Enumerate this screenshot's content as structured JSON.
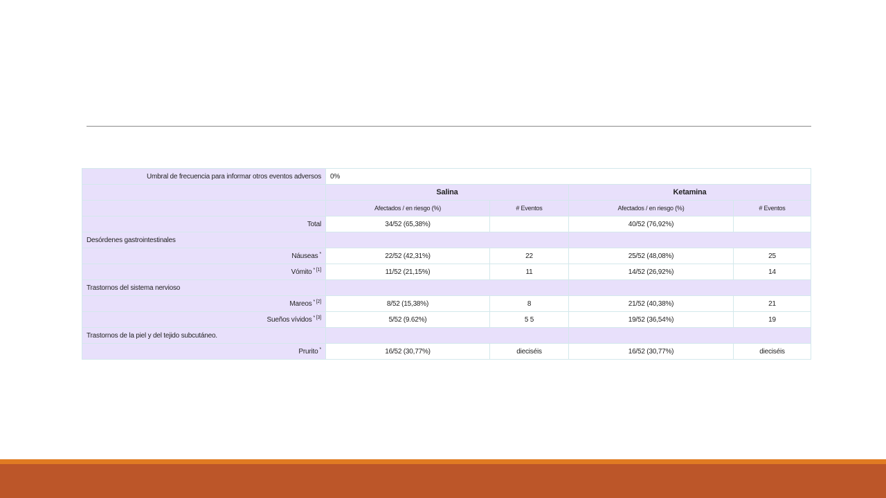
{
  "threshold": {
    "label": "Umbral de frecuencia para informar otros eventos adversos",
    "value": "0%"
  },
  "columns": {
    "group1": "Salina",
    "group2": "Ketamina",
    "sub_affected": "Afectados / en riesgo (%)",
    "sub_events": "# Eventos"
  },
  "total": {
    "label": "Total",
    "g1_affected": "34/52 (65,38%)",
    "g1_events": "",
    "g2_affected": "40/52 (76,92%)",
    "g2_events": ""
  },
  "sections": [
    {
      "title": "Desórdenes gastrointestinales",
      "rows": [
        {
          "label": "Náuseas",
          "marks": "*",
          "g1_affected": "22/52 (42,31%)",
          "g1_events": "22",
          "g2_affected": "25/52 (48,08%)",
          "g2_events": "25"
        },
        {
          "label": "Vómito",
          "marks": "* [1]",
          "g1_affected": "11/52 (21,15%)",
          "g1_events": "11",
          "g2_affected": "14/52 (26,92%)",
          "g2_events": "14"
        }
      ]
    },
    {
      "title": "Trastornos del sistema nervioso",
      "rows": [
        {
          "label": "Mareos",
          "marks": "* [2]",
          "g1_affected": "8/52 (15,38%)",
          "g1_events": "8",
          "g2_affected": "21/52 (40,38%)",
          "g2_events": "21"
        },
        {
          "label": "Sueños vívidos",
          "marks": "* [3]",
          "g1_affected": "5/52 (9.62%)",
          "g1_events": "5 5",
          "g2_affected": "19/52 (36,54%)",
          "g2_events": "19"
        }
      ]
    },
    {
      "title": "Trastornos de la piel y del tejido subcutáneo.",
      "rows": [
        {
          "label": "Prurito",
          "marks": "*",
          "g1_affected": "16/52 (30,77%)",
          "g1_events": "dieciséis",
          "g2_affected": "16/52 (30,77%)",
          "g2_events": "dieciséis"
        }
      ]
    }
  ],
  "colors": {
    "header_bg": "#e8e0fb",
    "cell_border": "#d3e8ec",
    "footer_thin": "#e07b22",
    "footer": "#bc5629"
  }
}
